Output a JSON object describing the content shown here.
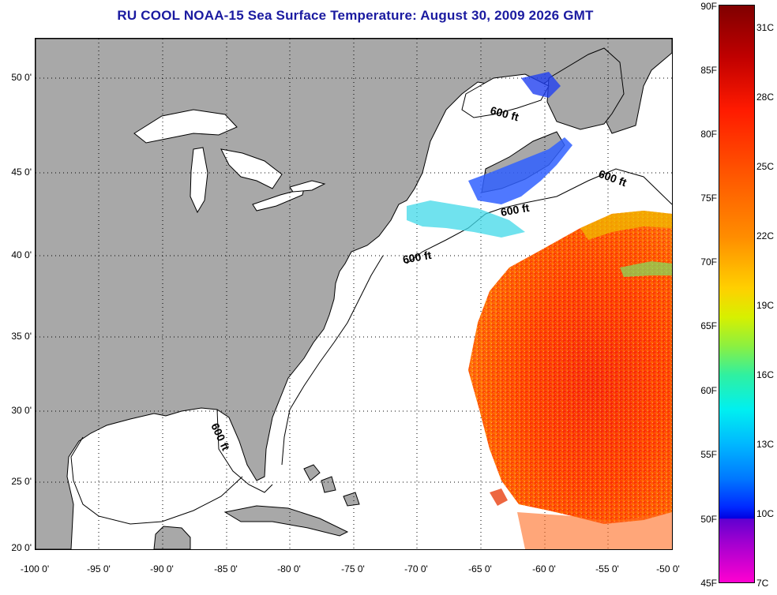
{
  "title": "RU COOL  NOAA-15  Sea Surface Temperature:  August 30, 2009 2026 GMT",
  "map": {
    "lon_range": [
      -100,
      -50
    ],
    "lat_range": [
      20,
      52.5
    ],
    "latitude_labels": [
      "50 0'",
      "45 0'",
      "40 0'",
      "35 0'",
      "30 0'",
      "25 0'",
      "20 0'"
    ],
    "longitude_labels": [
      "-100 0'",
      "-95 0'",
      "-90 0'",
      "-85 0'",
      "-80 0'",
      "-75 0'",
      "-70 0'",
      "-65 0'",
      "-60 0'",
      "-55 0'",
      "-50 0'"
    ],
    "contour_labels": [
      "600 ft",
      "600 ft",
      "600 ft",
      "600 ft",
      "600 ft"
    ],
    "colors": {
      "land": "#a8a8a8",
      "ocean": "#ffffff",
      "title": "#1a1aa0"
    }
  },
  "colorbar": {
    "fahrenheit_labels": [
      "90F",
      "85F",
      "80F",
      "75F",
      "70F",
      "65F",
      "60F",
      "55F",
      "50F",
      "45F"
    ],
    "celsius_labels": [
      "31C",
      "28C",
      "25C",
      "22C",
      "19C",
      "16C",
      "13C",
      "10C",
      "7C"
    ]
  }
}
